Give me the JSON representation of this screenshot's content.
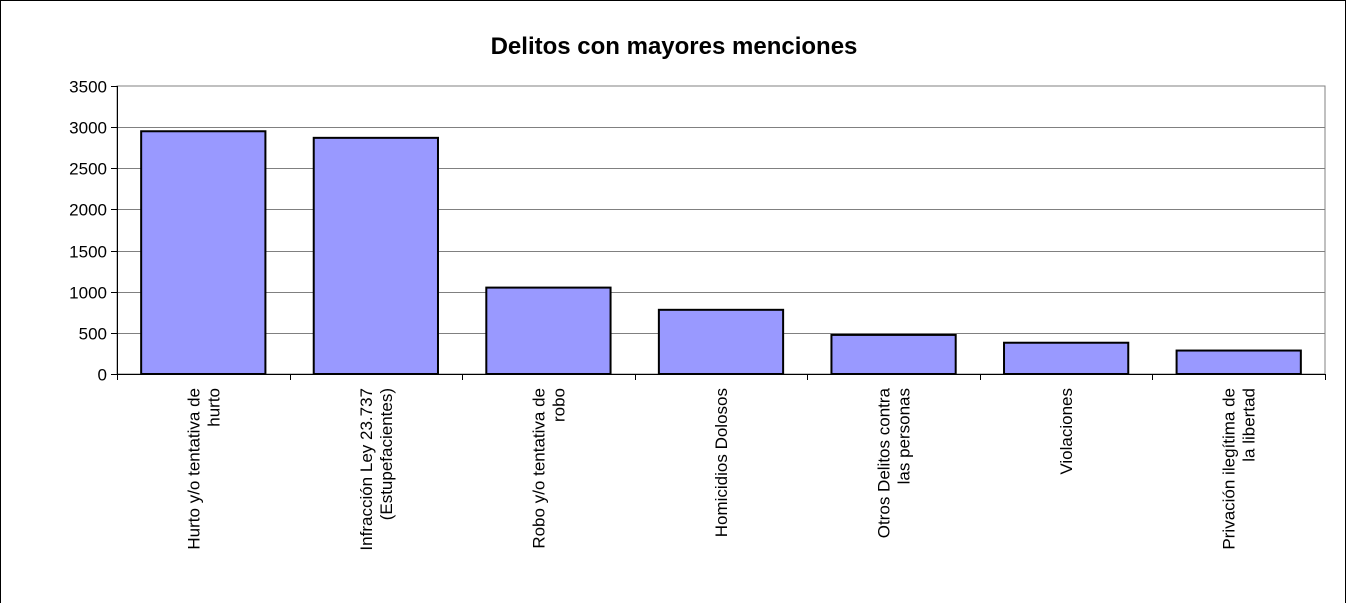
{
  "chart_data": {
    "type": "bar",
    "title": "Delitos con mayores menciones",
    "xlabel": "",
    "ylabel": "",
    "ylim": [
      0,
      3500
    ],
    "yticks": [
      0,
      500,
      1000,
      1500,
      2000,
      2500,
      3000,
      3500
    ],
    "grid": true,
    "legend": "none",
    "bar_color": "#9999ff",
    "plot_background": "#ffffff",
    "categories": [
      [
        "Hurto y/o tentativa de",
        "hurto"
      ],
      [
        "Infracción Ley 23.737",
        "(Estupefacientes)"
      ],
      [
        "Robo y/o tentativa de",
        "robo"
      ],
      [
        "Homicidios Dolosos"
      ],
      [
        "Otros Delitos contra",
        "las personas"
      ],
      [
        "Violaciones"
      ],
      [
        "Privación ilegítima de",
        "la libertad"
      ]
    ],
    "values": [
      2950,
      2870,
      1050,
      780,
      475,
      380,
      285
    ]
  }
}
